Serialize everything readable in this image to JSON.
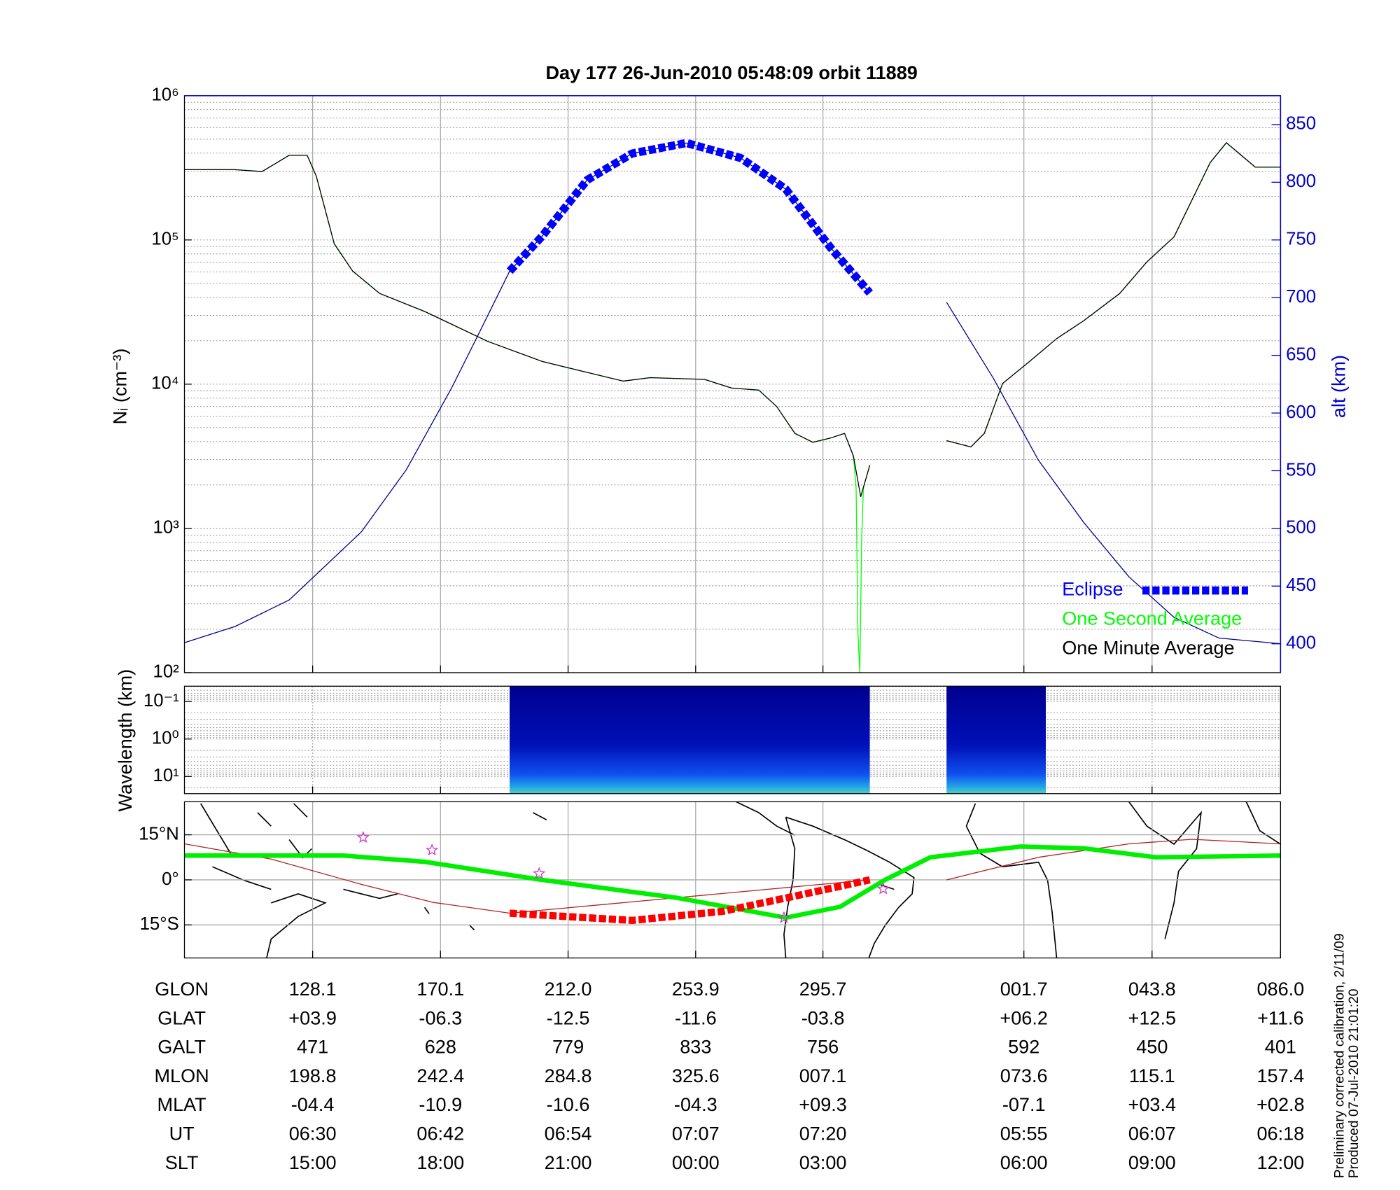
{
  "chart_data": [
    {
      "type": "line",
      "title": "Day 177  26-Jun-2010 05:48:09   orbit 11889",
      "ylabel": "Nᵢ (cm⁻³)",
      "y2label": "alt (km)",
      "xlim": [
        86,
        446
      ],
      "xticks": [
        128.1,
        170.1,
        212.0,
        253.9,
        295.7,
        361.7,
        403.8,
        446.0
      ],
      "ylim": [
        100,
        1000000
      ],
      "ylog": true,
      "grid": true,
      "yticks": [
        {
          "value": 100,
          "label": "10²"
        },
        {
          "value": 1000,
          "label": "10³"
        },
        {
          "value": 10000,
          "label": "10⁴"
        },
        {
          "value": 100000,
          "label": "10⁵"
        },
        {
          "value": 1000000,
          "label": "10⁶"
        }
      ],
      "y2lim": [
        375,
        875
      ],
      "y2ticks": [
        400,
        450,
        500,
        550,
        600,
        650,
        700,
        750,
        800,
        850
      ],
      "legend": "lower right",
      "series": [
        {
          "color": "#00008b",
          "axis": "y2",
          "x": [
            86,
            102.6,
            120.4,
            144.1,
            158.9,
            173.8,
            182.7,
            192.8,
            203.4,
            218.3,
            233.1,
            250.9,
            268.7,
            283.5,
            298.3,
            311.1,
            323.7,
            336.3,
            351.7,
            366.5,
            381.4,
            396.2,
            411.0,
            425.8,
            446.0
          ],
          "values": [
            401,
            415,
            438,
            497,
            551,
            622,
            669,
            723,
            753,
            802,
            825,
            834,
            821,
            794,
            743,
            704,
            null,
            696,
            630,
            559,
            505,
            458,
            423,
            405,
            400
          ]
        },
        {
          "name": "Eclipse",
          "color": "#0000ff",
          "axis": "y2",
          "style": "dashed",
          "x": [
            192.8,
            203.4,
            218.3,
            233.1,
            250.9,
            268.7,
            283.5,
            298.3,
            311.1
          ],
          "values": [
            723,
            753,
            802,
            825,
            834,
            821,
            794,
            743,
            704
          ]
        },
        {
          "name": "One Second Average",
          "color": "#00ff00",
          "x": [
            86,
            102.6,
            111.5,
            120.4,
            126.3,
            129.3,
            135.2,
            141.2,
            150.1,
            164.9,
            185.6,
            203.4,
            215.3,
            230.1,
            239.0,
            256.8,
            265.7,
            274.6,
            280.5,
            286.5,
            292.4,
            298.3,
            302.8,
            305.7,
            306.6,
            307.2,
            307.8,
            308.4,
            309.0,
            311.1,
            323.7,
            336.3,
            344.3,
            348.7,
            354.7,
            363.6,
            372.5,
            381.4,
            393.2,
            402.1,
            411.0,
            422.9,
            428.2,
            437.7,
            446.0
          ],
          "values": [
            307000,
            307000,
            298000,
            386000,
            386000,
            277000,
            94000,
            61000,
            42600,
            31900,
            19800,
            14400,
            12500,
            10500,
            11100,
            10800,
            9400,
            9100,
            7000,
            4560,
            3950,
            4240,
            4560,
            3180,
            1920,
            191,
            100,
            809,
            1920,
            2750,
            null,
            4060,
            3670,
            4560,
            10100,
            14400,
            20700,
            27600,
            42600,
            70500,
            105000,
            344000,
            472000,
            320000,
            320000
          ]
        },
        {
          "name": "One Minute Average",
          "color": "#000000",
          "x": [
            86,
            102.6,
            111.5,
            120.4,
            126.3,
            129.3,
            135.2,
            141.2,
            150.1,
            164.9,
            185.6,
            203.4,
            215.3,
            230.1,
            239.0,
            256.8,
            265.7,
            274.6,
            280.5,
            286.5,
            292.4,
            298.3,
            302.8,
            305.7,
            308.1,
            311.1,
            323.7,
            336.3,
            344.3,
            348.7,
            354.7,
            363.6,
            372.5,
            381.4,
            393.2,
            402.1,
            411.0,
            422.9,
            428.2,
            437.7,
            446.0
          ],
          "values": [
            307000,
            307000,
            298000,
            386000,
            386000,
            277000,
            94000,
            61000,
            42600,
            31900,
            19800,
            14400,
            12500,
            10500,
            11100,
            10800,
            9400,
            9100,
            7000,
            4560,
            3950,
            4240,
            4560,
            3180,
            1660,
            2750,
            null,
            4060,
            3670,
            4560,
            10100,
            14400,
            20700,
            27600,
            42600,
            70500,
            105000,
            344000,
            472000,
            320000,
            320000
          ]
        }
      ]
    },
    {
      "type": "spectrogram",
      "ylabel": "Wavelength (km)",
      "xlim": [
        86,
        446
      ],
      "xticks": [
        128.1,
        170.1,
        212.0,
        253.9,
        295.7,
        361.7,
        403.8,
        446.0
      ],
      "ylim": [
        0.039,
        28.6
      ],
      "ylog": true,
      "yreverse": true,
      "grid": true,
      "yticks": [
        {
          "value": 0.1,
          "label": "10⁻¹"
        },
        {
          "value": 1,
          "label": "10⁰"
        },
        {
          "value": 10,
          "label": "10¹"
        }
      ],
      "intervals": [
        [
          192.8,
          311.1
        ],
        [
          336.3,
          368.9
        ]
      ]
    },
    {
      "type": "map",
      "xlim": [
        86,
        446
      ],
      "xticks": [
        128.1,
        170.1,
        212.0,
        253.9,
        295.7,
        361.7,
        403.8,
        446.0
      ],
      "ylim": [
        -26,
        26
      ],
      "grid": true,
      "yticks": [
        {
          "value": -15,
          "label": "15°S"
        },
        {
          "value": 0,
          "label": "0°"
        },
        {
          "value": 15,
          "label": "15°N"
        }
      ],
      "series": [
        {
          "color": "#b22222",
          "x": [
            86,
            114.5,
            144.1,
            167.8,
            192.8,
            311.1,
            323.7,
            336.3,
            366.5,
            396.2,
            416.9,
            446.0
          ],
          "values": [
            12.0,
            6.9,
            -1.5,
            -7.5,
            -11.1,
            0,
            null,
            0,
            7.5,
            12.0,
            13.5,
            12.0
          ]
        },
        {
          "color": "#00ee00",
          "style": "thick",
          "x": [
            86,
            138.2,
            164.9,
            203.4,
            247.9,
            283.5,
            301.3,
            316.1,
            331.0,
            360.6,
            381.4,
            405.1,
            446.0
          ],
          "values": [
            8.1,
            8.1,
            6.0,
            0,
            -6.0,
            -12.6,
            -9.0,
            0,
            7.5,
            11.1,
            10.5,
            7.5,
            8.1
          ]
        },
        {
          "color": "#ff0000",
          "style": "dashed",
          "x": [
            192.8,
            233.1,
            262.7,
            286.5,
            311.1
          ],
          "values": [
            -11.1,
            -13.5,
            -10.5,
            -5.4,
            0
          ]
        }
      ],
      "markers": {
        "color": "#cc33cc",
        "x": [
          144.7,
          167.3,
          202.5,
          282.9,
          315.5
        ],
        "values": [
          14.1,
          9.9,
          2.1,
          -12.6,
          -3.0
        ]
      }
    }
  ],
  "table": {
    "rows": [
      {
        "label": "GLON",
        "values": [
          "128.1",
          "170.1",
          "212.0",
          "253.9",
          "295.7",
          "001.7",
          "043.8",
          "086.0"
        ]
      },
      {
        "label": "GLAT",
        "values": [
          "+03.9",
          "-06.3",
          "-12.5",
          "-11.6",
          "-03.8",
          "+06.2",
          "+12.5",
          "+11.6"
        ]
      },
      {
        "label": "GALT",
        "values": [
          "471",
          "628",
          "779",
          "833",
          "756",
          "592",
          "450",
          "401"
        ]
      },
      {
        "label": "MLON",
        "values": [
          "198.8",
          "242.4",
          "284.8",
          "325.6",
          "007.1",
          "073.6",
          "115.1",
          "157.4"
        ]
      },
      {
        "label": "MLAT",
        "values": [
          "-04.4",
          "-10.9",
          "-10.6",
          "-04.3",
          "+09.3",
          "-07.1",
          "+03.4",
          "+02.8"
        ]
      },
      {
        "label": "UT",
        "values": [
          "06:30",
          "06:42",
          "06:54",
          "07:07",
          "07:20",
          "05:55",
          "06:07",
          "06:18"
        ]
      },
      {
        "label": "SLT",
        "values": [
          "15:00",
          "18:00",
          "21:00",
          "00:00",
          "03:00",
          "06:00",
          "09:00",
          "12:00"
        ]
      }
    ]
  },
  "notes": [
    "Preliminary corrected calibration, 2/11/09",
    "Produced 07-Jul-2010 21:01:20"
  ]
}
